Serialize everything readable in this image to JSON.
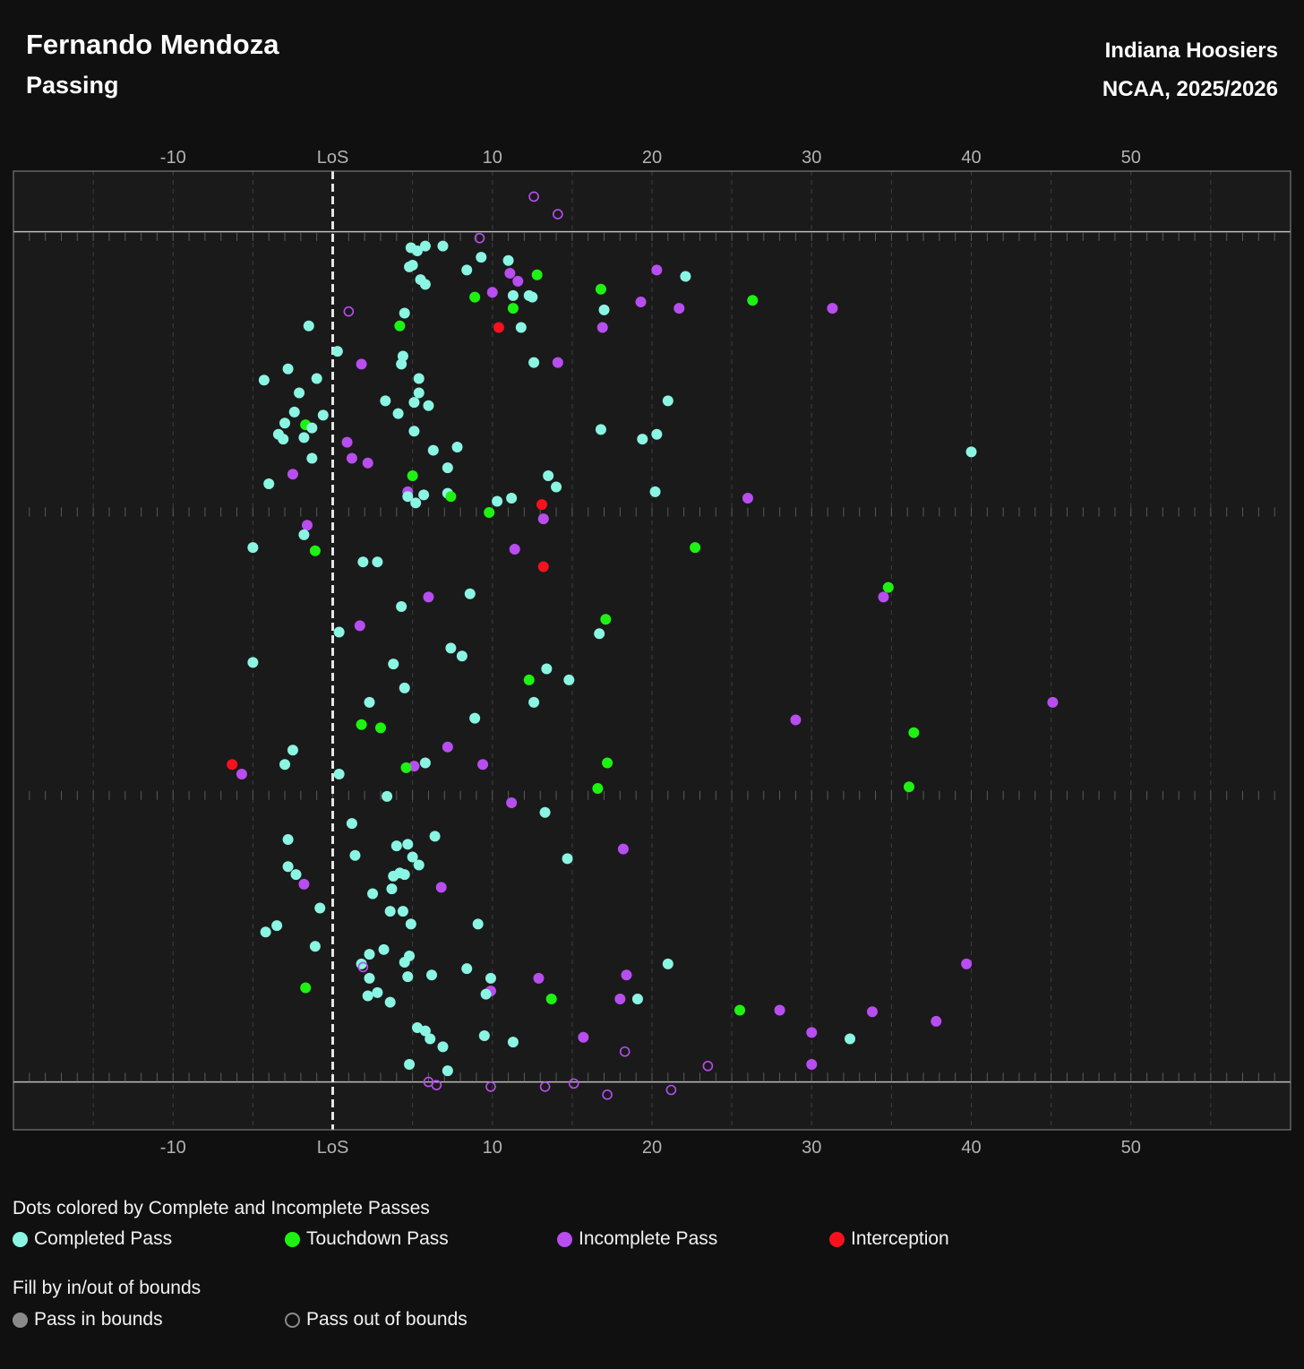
{
  "header": {
    "title": "Fernando Mendoza",
    "subtitle": "Passing",
    "team": "Indiana Hoosiers",
    "season": "NCAA, 2025/2026"
  },
  "legend": {
    "color_title": "Dots colored by Complete and Incomplete Passes",
    "color_items": [
      {
        "label": "Completed Pass",
        "color": "#8af5e2"
      },
      {
        "label": "Touchdown Pass",
        "color": "#1ef212"
      },
      {
        "label": "Incomplete Pass",
        "color": "#b84df0"
      },
      {
        "label": "Interception",
        "color": "#f5121e"
      }
    ],
    "fill_title": "Fill by in/out of bounds",
    "fill_items": [
      {
        "label": "Pass in bounds"
      },
      {
        "label": "Pass out of bounds"
      }
    ]
  },
  "chart_data": {
    "type": "scatter",
    "title": "Fernando Mendoza",
    "subtitle": "Passing",
    "x_axis": {
      "range": [
        -20,
        60
      ],
      "ticks": [
        -10,
        0,
        10,
        20,
        30,
        40,
        50
      ],
      "tick_labels": [
        "-10",
        "LoS",
        "10",
        "20",
        "30",
        "40",
        "50"
      ],
      "position": "top-and-bottom"
    },
    "y_axis": {
      "range": [
        -3.8,
        56.3
      ],
      "field_width": 53.3,
      "shown": false
    },
    "grid": true,
    "line_of_scrimmage": 0,
    "categories": {
      "C": "Completed Pass",
      "T": "Touchdown Pass",
      "I": "Incomplete Pass",
      "X": "Interception"
    },
    "points": [
      [
        12.6,
        -2.2,
        "I",
        "out"
      ],
      [
        14.1,
        -1.1,
        "I",
        "out"
      ],
      [
        9.2,
        0.4,
        "I",
        "out"
      ],
      [
        4.9,
        1.0,
        "C",
        "in"
      ],
      [
        5.8,
        0.9,
        "C",
        "in"
      ],
      [
        6.9,
        0.9,
        "C",
        "in"
      ],
      [
        5.3,
        1.2,
        "C",
        "in"
      ],
      [
        9.3,
        1.6,
        "C",
        "in"
      ],
      [
        11.0,
        1.8,
        "C",
        "in"
      ],
      [
        4.8,
        2.2,
        "C",
        "in"
      ],
      [
        5.0,
        2.1,
        "C",
        "in"
      ],
      [
        8.4,
        2.4,
        "C",
        "in"
      ],
      [
        11.1,
        2.6,
        "I",
        "in"
      ],
      [
        12.8,
        2.7,
        "T",
        "in"
      ],
      [
        20.3,
        2.4,
        "I",
        "in"
      ],
      [
        22.1,
        2.8,
        "C",
        "in"
      ],
      [
        5.5,
        3.0,
        "C",
        "in"
      ],
      [
        5.8,
        3.3,
        "C",
        "in"
      ],
      [
        11.6,
        3.1,
        "I",
        "in"
      ],
      [
        10.0,
        3.8,
        "I",
        "in"
      ],
      [
        11.3,
        4.0,
        "C",
        "in"
      ],
      [
        12.3,
        4.0,
        "C",
        "in"
      ],
      [
        12.5,
        4.1,
        "C",
        "in"
      ],
      [
        8.9,
        4.1,
        "T",
        "in"
      ],
      [
        16.8,
        3.6,
        "T",
        "in"
      ],
      [
        19.3,
        4.4,
        "I",
        "in"
      ],
      [
        26.3,
        4.3,
        "T",
        "in"
      ],
      [
        11.3,
        4.8,
        "T",
        "in"
      ],
      [
        17.0,
        4.9,
        "C",
        "in"
      ],
      [
        21.7,
        4.8,
        "I",
        "in"
      ],
      [
        31.3,
        4.8,
        "I",
        "in"
      ],
      [
        1.0,
        5.0,
        "I",
        "out"
      ],
      [
        4.5,
        5.1,
        "C",
        "in"
      ],
      [
        -1.5,
        5.9,
        "C",
        "in"
      ],
      [
        4.2,
        5.9,
        "T",
        "in"
      ],
      [
        10.4,
        6.0,
        "X",
        "in"
      ],
      [
        11.8,
        6.0,
        "C",
        "in"
      ],
      [
        16.9,
        6.0,
        "I",
        "in"
      ],
      [
        0.3,
        7.5,
        "C",
        "in"
      ],
      [
        4.4,
        7.8,
        "C",
        "in"
      ],
      [
        4.3,
        8.3,
        "C",
        "in"
      ],
      [
        1.8,
        8.3,
        "I",
        "in"
      ],
      [
        12.6,
        8.2,
        "C",
        "in"
      ],
      [
        14.1,
        8.2,
        "I",
        "in"
      ],
      [
        -2.8,
        8.6,
        "C",
        "in"
      ],
      [
        -4.3,
        9.3,
        "C",
        "in"
      ],
      [
        -1.0,
        9.2,
        "C",
        "in"
      ],
      [
        5.4,
        9.2,
        "C",
        "in"
      ],
      [
        -2.1,
        10.1,
        "C",
        "in"
      ],
      [
        5.4,
        10.1,
        "C",
        "in"
      ],
      [
        3.3,
        10.6,
        "C",
        "in"
      ],
      [
        5.1,
        10.7,
        "C",
        "in"
      ],
      [
        6.0,
        10.9,
        "C",
        "in"
      ],
      [
        21.0,
        10.6,
        "C",
        "in"
      ],
      [
        -2.4,
        11.3,
        "C",
        "in"
      ],
      [
        4.1,
        11.4,
        "C",
        "in"
      ],
      [
        -0.6,
        11.5,
        "C",
        "in"
      ],
      [
        -3.0,
        12.0,
        "C",
        "in"
      ],
      [
        -1.7,
        12.1,
        "T",
        "in"
      ],
      [
        -1.3,
        12.3,
        "C",
        "in"
      ],
      [
        -3.4,
        12.7,
        "C",
        "in"
      ],
      [
        -3.1,
        13.0,
        "C",
        "in"
      ],
      [
        -1.8,
        12.9,
        "C",
        "in"
      ],
      [
        5.1,
        12.5,
        "C",
        "in"
      ],
      [
        16.8,
        12.4,
        "C",
        "in"
      ],
      [
        20.3,
        12.7,
        "C",
        "in"
      ],
      [
        19.4,
        13.0,
        "C",
        "in"
      ],
      [
        0.9,
        13.2,
        "I",
        "in"
      ],
      [
        6.3,
        13.7,
        "C",
        "in"
      ],
      [
        7.8,
        13.5,
        "C",
        "in"
      ],
      [
        40.0,
        13.8,
        "C",
        "in"
      ],
      [
        -1.3,
        14.2,
        "C",
        "in"
      ],
      [
        1.2,
        14.2,
        "I",
        "in"
      ],
      [
        2.2,
        14.5,
        "I",
        "in"
      ],
      [
        7.2,
        14.8,
        "C",
        "in"
      ],
      [
        -2.5,
        15.2,
        "I",
        "in"
      ],
      [
        5.0,
        15.3,
        "T",
        "in"
      ],
      [
        13.5,
        15.3,
        "C",
        "in"
      ],
      [
        -4.0,
        15.8,
        "C",
        "in"
      ],
      [
        14.0,
        16.0,
        "C",
        "in"
      ],
      [
        20.2,
        16.3,
        "C",
        "in"
      ],
      [
        4.7,
        16.3,
        "I",
        "in"
      ],
      [
        4.7,
        16.6,
        "C",
        "in"
      ],
      [
        5.7,
        16.5,
        "C",
        "in"
      ],
      [
        7.2,
        16.4,
        "C",
        "in"
      ],
      [
        7.4,
        16.6,
        "T",
        "in"
      ],
      [
        5.2,
        17.0,
        "C",
        "in"
      ],
      [
        11.2,
        16.7,
        "C",
        "in"
      ],
      [
        10.3,
        16.9,
        "C",
        "in"
      ],
      [
        13.1,
        17.1,
        "X",
        "in"
      ],
      [
        26.0,
        16.7,
        "I",
        "in"
      ],
      [
        9.8,
        17.6,
        "T",
        "in"
      ],
      [
        13.2,
        18.0,
        "I",
        "in"
      ],
      [
        -1.6,
        18.4,
        "I",
        "in"
      ],
      [
        -1.8,
        19.0,
        "C",
        "in"
      ],
      [
        -5.0,
        19.8,
        "C",
        "in"
      ],
      [
        -1.1,
        20.0,
        "T",
        "in"
      ],
      [
        11.4,
        19.9,
        "I",
        "in"
      ],
      [
        22.7,
        19.8,
        "T",
        "in"
      ],
      [
        1.9,
        20.7,
        "C",
        "in"
      ],
      [
        2.8,
        20.7,
        "C",
        "in"
      ],
      [
        13.2,
        21.0,
        "X",
        "in"
      ],
      [
        34.8,
        22.3,
        "T",
        "in"
      ],
      [
        34.5,
        22.9,
        "I",
        "in"
      ],
      [
        6.0,
        22.9,
        "I",
        "in"
      ],
      [
        8.6,
        22.7,
        "C",
        "in"
      ],
      [
        4.3,
        23.5,
        "C",
        "in"
      ],
      [
        17.1,
        24.3,
        "T",
        "in"
      ],
      [
        1.7,
        24.7,
        "I",
        "in"
      ],
      [
        0.4,
        25.1,
        "C",
        "in"
      ],
      [
        16.7,
        25.2,
        "C",
        "in"
      ],
      [
        7.4,
        26.1,
        "C",
        "in"
      ],
      [
        8.1,
        26.6,
        "C",
        "in"
      ],
      [
        -5.0,
        27.0,
        "C",
        "in"
      ],
      [
        3.8,
        27.1,
        "C",
        "in"
      ],
      [
        13.4,
        27.4,
        "C",
        "in"
      ],
      [
        12.3,
        28.1,
        "T",
        "in"
      ],
      [
        14.8,
        28.1,
        "C",
        "in"
      ],
      [
        4.5,
        28.6,
        "C",
        "in"
      ],
      [
        2.3,
        29.5,
        "C",
        "in"
      ],
      [
        12.6,
        29.5,
        "C",
        "in"
      ],
      [
        45.1,
        29.5,
        "I",
        "in"
      ],
      [
        29.0,
        30.6,
        "I",
        "in"
      ],
      [
        8.9,
        30.5,
        "C",
        "in"
      ],
      [
        1.8,
        30.9,
        "T",
        "in"
      ],
      [
        3.0,
        31.1,
        "T",
        "in"
      ],
      [
        36.4,
        31.4,
        "T",
        "in"
      ],
      [
        7.2,
        32.3,
        "I",
        "in"
      ],
      [
        -2.5,
        32.5,
        "C",
        "in"
      ],
      [
        -3.0,
        33.4,
        "C",
        "in"
      ],
      [
        5.8,
        33.3,
        "C",
        "in"
      ],
      [
        9.4,
        33.4,
        "I",
        "in"
      ],
      [
        -6.3,
        33.4,
        "X",
        "in"
      ],
      [
        5.1,
        33.5,
        "I",
        "in"
      ],
      [
        4.6,
        33.6,
        "T",
        "in"
      ],
      [
        17.2,
        33.3,
        "T",
        "in"
      ],
      [
        -5.7,
        34.0,
        "I",
        "in"
      ],
      [
        0.4,
        34.0,
        "C",
        "in"
      ],
      [
        3.4,
        35.4,
        "C",
        "in"
      ],
      [
        16.6,
        34.9,
        "T",
        "in"
      ],
      [
        36.1,
        34.8,
        "T",
        "in"
      ],
      [
        11.2,
        35.8,
        "I",
        "in"
      ],
      [
        13.3,
        36.4,
        "C",
        "in"
      ],
      [
        1.2,
        37.1,
        "C",
        "in"
      ],
      [
        6.4,
        37.9,
        "C",
        "in"
      ],
      [
        -2.8,
        38.1,
        "C",
        "in"
      ],
      [
        4.0,
        38.5,
        "C",
        "in"
      ],
      [
        4.7,
        38.4,
        "C",
        "in"
      ],
      [
        18.2,
        38.7,
        "I",
        "in"
      ],
      [
        1.4,
        39.1,
        "C",
        "in"
      ],
      [
        5.0,
        39.2,
        "C",
        "in"
      ],
      [
        14.7,
        39.3,
        "C",
        "in"
      ],
      [
        5.4,
        39.7,
        "C",
        "in"
      ],
      [
        -2.8,
        39.8,
        "C",
        "in"
      ],
      [
        -2.3,
        40.3,
        "C",
        "in"
      ],
      [
        4.5,
        40.3,
        "C",
        "in"
      ],
      [
        4.2,
        40.2,
        "C",
        "in"
      ],
      [
        3.8,
        40.4,
        "C",
        "in"
      ],
      [
        -1.8,
        40.9,
        "I",
        "in"
      ],
      [
        6.8,
        41.1,
        "I",
        "in"
      ],
      [
        3.7,
        41.2,
        "C",
        "in"
      ],
      [
        2.5,
        41.5,
        "C",
        "in"
      ],
      [
        -0.8,
        42.4,
        "C",
        "in"
      ],
      [
        3.6,
        42.6,
        "C",
        "in"
      ],
      [
        4.4,
        42.6,
        "C",
        "in"
      ],
      [
        -3.5,
        43.5,
        "C",
        "in"
      ],
      [
        -4.2,
        43.9,
        "C",
        "in"
      ],
      [
        4.9,
        43.4,
        "C",
        "in"
      ],
      [
        9.1,
        43.4,
        "C",
        "in"
      ],
      [
        -1.1,
        44.8,
        "C",
        "in"
      ],
      [
        3.2,
        45.0,
        "C",
        "in"
      ],
      [
        2.3,
        45.3,
        "C",
        "in"
      ],
      [
        4.8,
        45.4,
        "C",
        "in"
      ],
      [
        4.5,
        45.8,
        "C",
        "in"
      ],
      [
        1.8,
        45.9,
        "C",
        "in"
      ],
      [
        1.9,
        46.1,
        "I",
        "out"
      ],
      [
        21.0,
        45.9,
        "C",
        "in"
      ],
      [
        39.7,
        45.9,
        "I",
        "in"
      ],
      [
        8.4,
        46.2,
        "C",
        "in"
      ],
      [
        2.3,
        46.8,
        "C",
        "in"
      ],
      [
        4.7,
        46.7,
        "C",
        "in"
      ],
      [
        6.2,
        46.6,
        "C",
        "in"
      ],
      [
        9.9,
        46.8,
        "C",
        "in"
      ],
      [
        12.9,
        46.8,
        "I",
        "in"
      ],
      [
        18.4,
        46.6,
        "I",
        "in"
      ],
      [
        -1.7,
        47.4,
        "T",
        "in"
      ],
      [
        9.9,
        47.6,
        "I",
        "in"
      ],
      [
        9.6,
        47.8,
        "C",
        "in"
      ],
      [
        2.8,
        47.7,
        "C",
        "in"
      ],
      [
        2.2,
        47.9,
        "C",
        "in"
      ],
      [
        13.7,
        48.1,
        "T",
        "in"
      ],
      [
        18.0,
        48.1,
        "I",
        "in"
      ],
      [
        19.1,
        48.1,
        "C",
        "in"
      ],
      [
        3.6,
        48.3,
        "C",
        "in"
      ],
      [
        25.5,
        48.8,
        "T",
        "in"
      ],
      [
        28.0,
        48.8,
        "I",
        "in"
      ],
      [
        33.8,
        48.9,
        "I",
        "in"
      ],
      [
        37.8,
        49.5,
        "I",
        "in"
      ],
      [
        5.3,
        49.9,
        "C",
        "in"
      ],
      [
        5.8,
        50.1,
        "C",
        "in"
      ],
      [
        6.1,
        50.6,
        "C",
        "in"
      ],
      [
        9.5,
        50.4,
        "C",
        "in"
      ],
      [
        11.3,
        50.8,
        "C",
        "in"
      ],
      [
        15.7,
        50.5,
        "I",
        "in"
      ],
      [
        30.0,
        50.2,
        "I",
        "in"
      ],
      [
        32.4,
        50.6,
        "C",
        "in"
      ],
      [
        6.9,
        51.1,
        "C",
        "in"
      ],
      [
        18.3,
        51.4,
        "I",
        "out"
      ],
      [
        4.8,
        52.2,
        "C",
        "in"
      ],
      [
        7.2,
        52.6,
        "C",
        "in"
      ],
      [
        23.5,
        52.3,
        "I",
        "out"
      ],
      [
        30.0,
        52.2,
        "I",
        "in"
      ],
      [
        6.0,
        53.3,
        "I",
        "out"
      ],
      [
        6.5,
        53.5,
        "I",
        "out"
      ],
      [
        9.9,
        53.6,
        "I",
        "out"
      ],
      [
        13.3,
        53.6,
        "I",
        "out"
      ],
      [
        15.1,
        53.4,
        "I",
        "out"
      ],
      [
        17.2,
        54.1,
        "I",
        "out"
      ],
      [
        21.2,
        53.8,
        "I",
        "out"
      ]
    ]
  }
}
